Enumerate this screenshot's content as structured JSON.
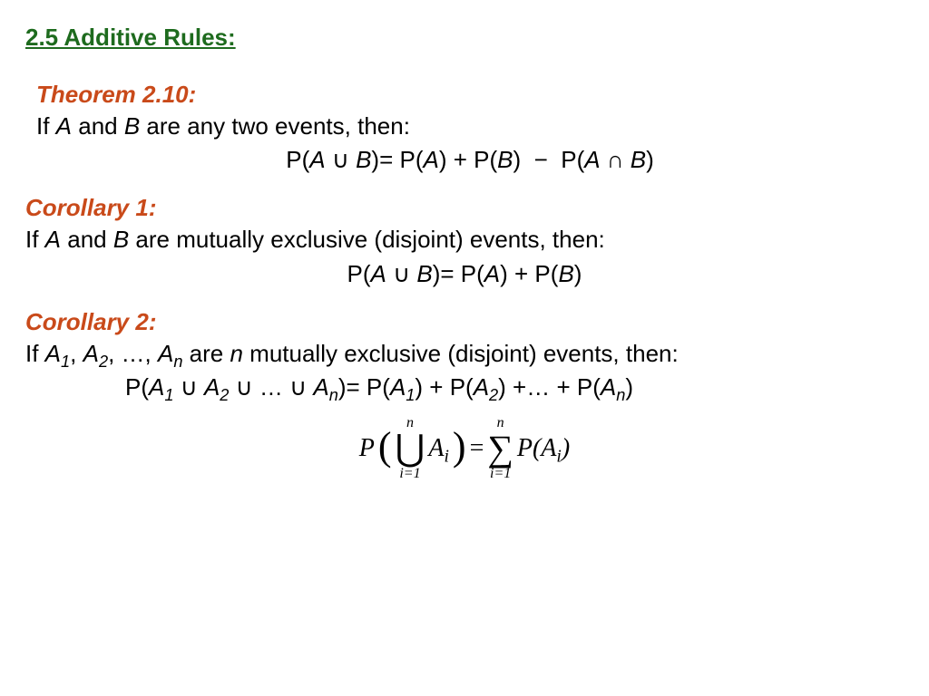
{
  "title": "2.5 Additive Rules:",
  "theorem": {
    "label": "Theorem 2.10:",
    "statement_pre": "If ",
    "A": "A",
    "and": " and ",
    "B": "B",
    "statement_post": " are any two events, then:",
    "formula": "P(A ∪ B) = P(A) + P(B) − P(A ∩ B)"
  },
  "corollary1": {
    "label": "Corollary 1:",
    "statement_pre": "If ",
    "A": "A",
    "and": " and ",
    "B": "B",
    "statement_post": " are mutually exclusive (disjoint) events, then:",
    "formula": "P(A ∪ B) = P(A) + P(B)"
  },
  "corollary2": {
    "label": "Corollary 2:",
    "statement_pre": "If ",
    "list": "A₁, A₂, …, Aₙ",
    "statement_mid": " are ",
    "n": "n",
    "statement_post": " mutually exclusive (disjoint) events, then:",
    "formula": "P(A₁ ∪ A₂ ∪ … ∪ Aₙ) = P(A₁) + P(A₂) + … + P(Aₙ)"
  },
  "sumformula": {
    "P": "P",
    "lparen": "(",
    "union_top": "n",
    "union_op": "⋃",
    "union_bot": "i=1",
    "Ai": "A",
    "i": "i",
    "rparen": ")",
    "eq": " = ",
    "sum_top": "n",
    "sum_op": "∑",
    "sum_bot": "i=1",
    "PAi": "P(A",
    "i2": "i",
    "close": ")"
  },
  "colors": {
    "title": "#1e6b1e",
    "label": "#c94a1a",
    "text": "#000000",
    "background": "#ffffff"
  },
  "fontsizes": {
    "body_pt": 20,
    "title_pt": 20,
    "sum_op_pt": 30
  }
}
